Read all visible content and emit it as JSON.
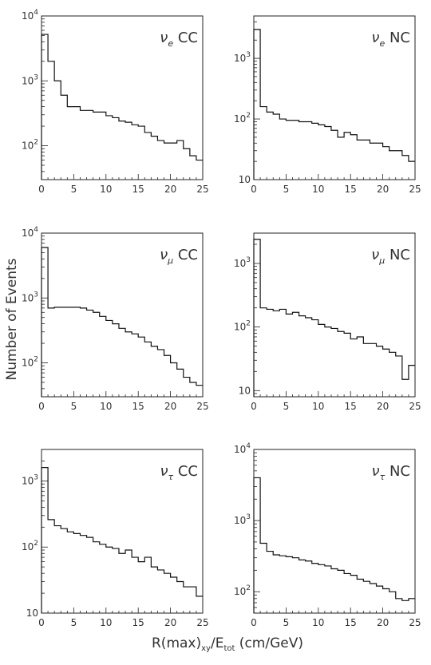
{
  "figure": {
    "y_axis_title": "Number of Events",
    "x_axis_title": {
      "main": "R(max)",
      "sub1": "xy",
      "mid": "/E",
      "sub2": "tot",
      "tail": " (cm/GeV)"
    }
  },
  "chart_data": [
    {
      "type": "histogram",
      "label": {
        "symbol": "ν",
        "subscript": "e",
        "text": "CC"
      },
      "xlim": [
        0,
        25
      ],
      "ylim": [
        30,
        10000
      ],
      "yscale": "log",
      "xticks": [
        "0",
        "5",
        "10",
        "15",
        "20",
        "25"
      ],
      "yticks": [
        {
          "value": 100,
          "base": "10",
          "exp": "2"
        },
        {
          "value": 1000,
          "base": "10",
          "exp": "3"
        },
        {
          "value": 10000,
          "base": "10",
          "exp": "4"
        }
      ],
      "bin_width": 1,
      "values": [
        5200,
        2000,
        1000,
        600,
        400,
        400,
        350,
        350,
        330,
        330,
        290,
        270,
        240,
        230,
        210,
        200,
        160,
        140,
        120,
        110,
        110,
        120,
        90,
        70,
        60
      ]
    },
    {
      "type": "histogram",
      "label": {
        "symbol": "ν",
        "subscript": "e",
        "text": "NC"
      },
      "xlim": [
        0,
        25
      ],
      "ylim": [
        10,
        5000
      ],
      "yscale": "log",
      "xticks": [
        "0",
        "5",
        "10",
        "15",
        "20",
        "25"
      ],
      "yticks": [
        {
          "value": 10,
          "base": "10",
          "exp": ""
        },
        {
          "value": 100,
          "base": "10",
          "exp": "2"
        },
        {
          "value": 1000,
          "base": "10",
          "exp": "3"
        }
      ],
      "bin_width": 1,
      "values": [
        3000,
        160,
        130,
        120,
        100,
        95,
        95,
        90,
        90,
        85,
        80,
        75,
        65,
        50,
        60,
        55,
        45,
        45,
        40,
        40,
        35,
        30,
        30,
        25,
        20
      ]
    },
    {
      "type": "histogram",
      "label": {
        "symbol": "ν",
        "subscript": "μ",
        "text": "CC"
      },
      "xlim": [
        0,
        25
      ],
      "ylim": [
        30,
        10000
      ],
      "yscale": "log",
      "xticks": [
        "0",
        "5",
        "10",
        "15",
        "20",
        "25"
      ],
      "yticks": [
        {
          "value": 100,
          "base": "10",
          "exp": "2"
        },
        {
          "value": 1000,
          "base": "10",
          "exp": "3"
        },
        {
          "value": 10000,
          "base": "10",
          "exp": "4"
        }
      ],
      "bin_width": 1,
      "values": [
        6000,
        700,
        720,
        720,
        720,
        720,
        700,
        650,
        600,
        520,
        450,
        400,
        340,
        300,
        280,
        250,
        210,
        180,
        160,
        130,
        100,
        80,
        60,
        50,
        45
      ]
    },
    {
      "type": "histogram",
      "label": {
        "symbol": "ν",
        "subscript": "μ",
        "text": "NC"
      },
      "xlim": [
        0,
        25
      ],
      "ylim": [
        8,
        3000
      ],
      "yscale": "log",
      "xticks": [
        "0",
        "5",
        "10",
        "15",
        "20",
        "25"
      ],
      "yticks": [
        {
          "value": 10,
          "base": "10",
          "exp": ""
        },
        {
          "value": 100,
          "base": "10",
          "exp": "2"
        },
        {
          "value": 1000,
          "base": "10",
          "exp": "3"
        }
      ],
      "bin_width": 1,
      "values": [
        2400,
        200,
        190,
        180,
        190,
        160,
        170,
        150,
        140,
        130,
        110,
        100,
        95,
        85,
        80,
        65,
        70,
        55,
        55,
        50,
        45,
        40,
        35,
        15,
        25
      ]
    },
    {
      "type": "histogram",
      "label": {
        "symbol": "ν",
        "subscript": "τ",
        "text": "CC"
      },
      "xlim": [
        0,
        25
      ],
      "ylim": [
        10,
        3000
      ],
      "yscale": "log",
      "xticks": [
        "0",
        "5",
        "10",
        "15",
        "20",
        "25"
      ],
      "yticks": [
        {
          "value": 10,
          "base": "10",
          "exp": ""
        },
        {
          "value": 100,
          "base": "10",
          "exp": "2"
        },
        {
          "value": 1000,
          "base": "10",
          "exp": "3"
        }
      ],
      "bin_width": 1,
      "values": [
        1600,
        260,
        210,
        190,
        170,
        160,
        150,
        140,
        120,
        110,
        100,
        95,
        80,
        90,
        70,
        60,
        70,
        50,
        45,
        40,
        35,
        30,
        25,
        25,
        18
      ]
    },
    {
      "type": "histogram",
      "label": {
        "symbol": "ν",
        "subscript": "τ",
        "text": "NC"
      },
      "xlim": [
        0,
        25
      ],
      "ylim": [
        50,
        10000
      ],
      "yscale": "log",
      "xticks": [
        "0",
        "5",
        "10",
        "15",
        "20",
        "25"
      ],
      "yticks": [
        {
          "value": 100,
          "base": "10",
          "exp": "2"
        },
        {
          "value": 1000,
          "base": "10",
          "exp": "3"
        },
        {
          "value": 10000,
          "base": "10",
          "exp": "4"
        }
      ],
      "bin_width": 1,
      "values": [
        4000,
        480,
        370,
        330,
        320,
        310,
        300,
        280,
        270,
        250,
        240,
        230,
        210,
        200,
        180,
        170,
        150,
        140,
        130,
        120,
        110,
        100,
        80,
        75,
        80
      ]
    }
  ]
}
